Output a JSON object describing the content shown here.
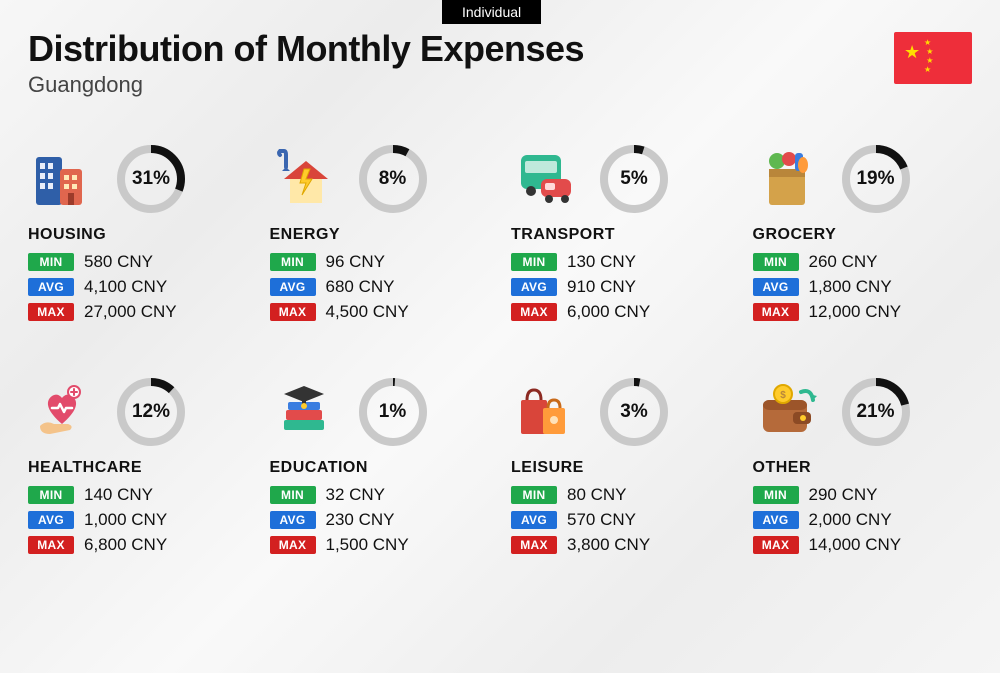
{
  "tab_label": "Individual",
  "title": "Distribution of Monthly Expenses",
  "subtitle": "Guangdong",
  "currency": "CNY",
  "badges": {
    "min": {
      "label": "MIN",
      "bg": "#1fa84b"
    },
    "avg": {
      "label": "AVG",
      "bg": "#1e6fd9"
    },
    "max": {
      "label": "MAX",
      "bg": "#d32020"
    }
  },
  "donut": {
    "ring_bg": "#c9c9c9",
    "ring_fg": "#111111",
    "ring_width": 8,
    "radius": 30
  },
  "flag": {
    "bg": "#ee2e3a",
    "star": "#ffde00"
  },
  "categories": [
    {
      "key": "housing",
      "name": "HOUSING",
      "pct": 31,
      "min": "580 CNY",
      "avg": "4,100 CNY",
      "max": "27,000 CNY",
      "icon": "housing"
    },
    {
      "key": "energy",
      "name": "ENERGY",
      "pct": 8,
      "min": "96 CNY",
      "avg": "680 CNY",
      "max": "4,500 CNY",
      "icon": "energy"
    },
    {
      "key": "transport",
      "name": "TRANSPORT",
      "pct": 5,
      "min": "130 CNY",
      "avg": "910 CNY",
      "max": "6,000 CNY",
      "icon": "transport"
    },
    {
      "key": "grocery",
      "name": "GROCERY",
      "pct": 19,
      "min": "260 CNY",
      "avg": "1,800 CNY",
      "max": "12,000 CNY",
      "icon": "grocery"
    },
    {
      "key": "healthcare",
      "name": "HEALTHCARE",
      "pct": 12,
      "min": "140 CNY",
      "avg": "1,000 CNY",
      "max": "6,800 CNY",
      "icon": "healthcare"
    },
    {
      "key": "education",
      "name": "EDUCATION",
      "pct": 1,
      "min": "32 CNY",
      "avg": "230 CNY",
      "max": "1,500 CNY",
      "icon": "education"
    },
    {
      "key": "leisure",
      "name": "LEISURE",
      "pct": 3,
      "min": "80 CNY",
      "avg": "570 CNY",
      "max": "3,800 CNY",
      "icon": "leisure"
    },
    {
      "key": "other",
      "name": "OTHER",
      "pct": 21,
      "min": "290 CNY",
      "avg": "2,000 CNY",
      "max": "14,000 CNY",
      "icon": "other"
    }
  ],
  "icons": {
    "housing": {
      "type": "buildings"
    },
    "energy": {
      "type": "house-bolt"
    },
    "transport": {
      "type": "bus-car"
    },
    "grocery": {
      "type": "grocery-bag"
    },
    "healthcare": {
      "type": "heart-hand"
    },
    "education": {
      "type": "books-cap"
    },
    "leisure": {
      "type": "shopping-bags"
    },
    "other": {
      "type": "wallet"
    }
  }
}
